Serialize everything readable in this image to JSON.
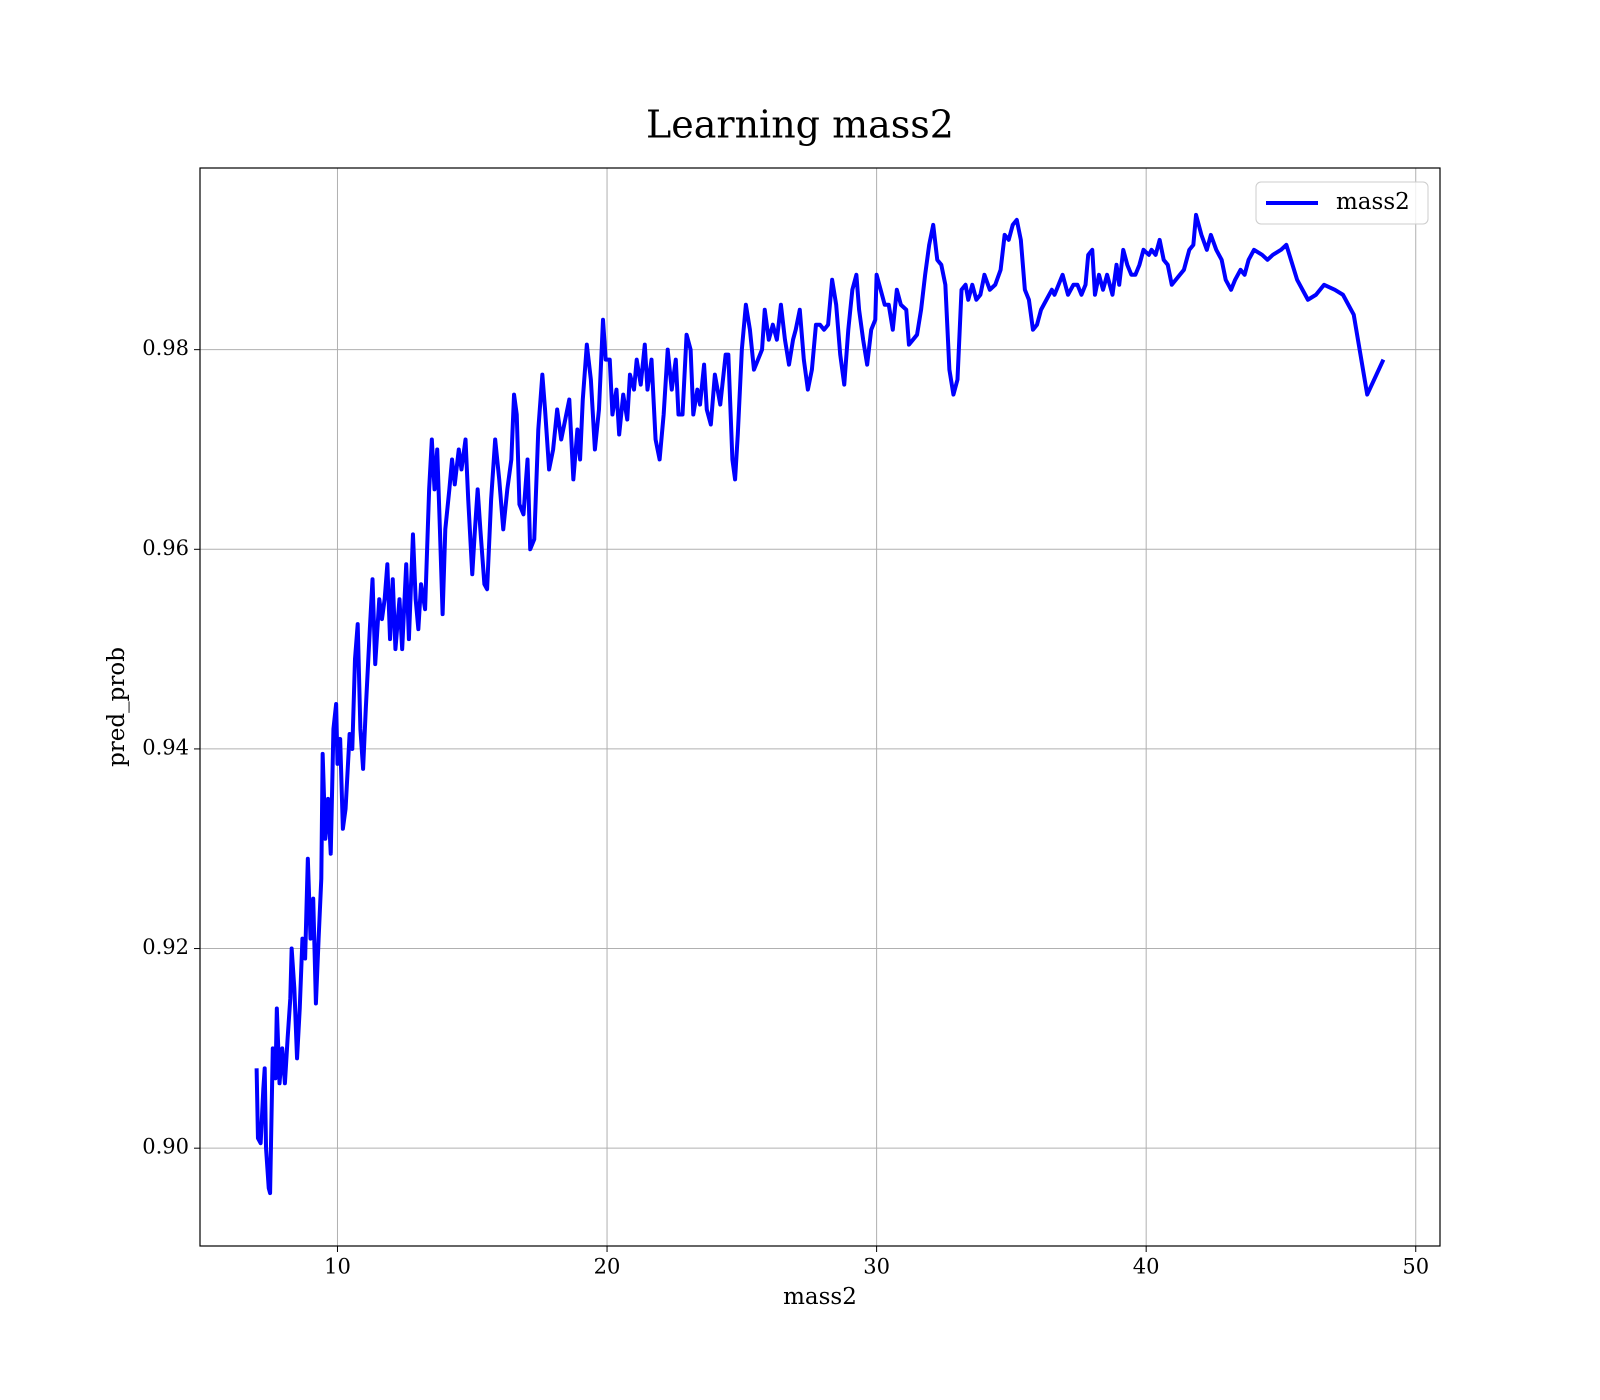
{
  "chart_data": {
    "type": "line",
    "title": "Learning mass2",
    "xlabel": "mass2",
    "ylabel": "pred_prob",
    "x": [
      7.0,
      7.05,
      7.15,
      7.25,
      7.3,
      7.35,
      7.45,
      7.5,
      7.6,
      7.7,
      7.75,
      7.85,
      7.95,
      8.05,
      8.15,
      8.25,
      8.3,
      8.4,
      8.5,
      8.6,
      8.7,
      8.8,
      8.9,
      9.0,
      9.1,
      9.2,
      9.3,
      9.4,
      9.45,
      9.55,
      9.65,
      9.75,
      9.85,
      9.95,
      10.0,
      10.1,
      10.2,
      10.3,
      10.45,
      10.55,
      10.65,
      10.75,
      10.85,
      10.95,
      11.05,
      11.2,
      11.3,
      11.4,
      11.55,
      11.65,
      11.75,
      11.85,
      11.95,
      12.05,
      12.15,
      12.3,
      12.4,
      12.55,
      12.65,
      12.8,
      12.9,
      13.0,
      13.1,
      13.25,
      13.4,
      13.5,
      13.6,
      13.7,
      13.8,
      13.9,
      14.0,
      14.15,
      14.25,
      14.35,
      14.5,
      14.6,
      14.75,
      14.85,
      15.0,
      15.1,
      15.2,
      15.3,
      15.45,
      15.55,
      15.7,
      15.85,
      16.0,
      16.15,
      16.3,
      16.45,
      16.55,
      16.65,
      16.75,
      16.9,
      17.05,
      17.15,
      17.3,
      17.45,
      17.6,
      17.7,
      17.85,
      18.0,
      18.15,
      18.3,
      18.45,
      18.6,
      18.75,
      18.9,
      19.0,
      19.1,
      19.25,
      19.4,
      19.55,
      19.7,
      19.85,
      19.95,
      20.1,
      20.2,
      20.35,
      20.45,
      20.6,
      20.75,
      20.85,
      21.0,
      21.1,
      21.25,
      21.4,
      21.5,
      21.65,
      21.8,
      21.95,
      22.1,
      22.25,
      22.4,
      22.55,
      22.65,
      22.8,
      22.95,
      23.1,
      23.2,
      23.35,
      23.45,
      23.6,
      23.7,
      23.85,
      24.0,
      24.2,
      24.4,
      24.5,
      24.65,
      24.75,
      24.85,
      25.0,
      25.15,
      25.3,
      25.45,
      25.6,
      25.75,
      25.85,
      26.0,
      26.15,
      26.3,
      26.45,
      26.6,
      26.75,
      26.9,
      27.0,
      27.15,
      27.3,
      27.45,
      27.6,
      27.75,
      27.9,
      28.05,
      28.2,
      28.35,
      28.5,
      28.65,
      28.8,
      28.95,
      29.1,
      29.25,
      29.35,
      29.5,
      29.65,
      29.8,
      29.95,
      30.0,
      30.15,
      30.3,
      30.45,
      30.6,
      30.75,
      30.9,
      31.1,
      31.2,
      31.35,
      31.5,
      31.65,
      31.8,
      31.95,
      32.1,
      32.25,
      32.4,
      32.55,
      32.7,
      32.85,
      33.0,
      33.15,
      33.3,
      33.4,
      33.55,
      33.7,
      33.85,
      34.0,
      34.2,
      34.4,
      34.6,
      34.75,
      34.9,
      35.05,
      35.2,
      35.35,
      35.5,
      35.65,
      35.8,
      35.95,
      36.1,
      36.3,
      36.5,
      36.6,
      36.75,
      36.9,
      37.1,
      37.3,
      37.45,
      37.6,
      37.75,
      37.85,
      38.0,
      38.1,
      38.25,
      38.4,
      38.55,
      38.75,
      38.9,
      39.0,
      39.15,
      39.3,
      39.45,
      39.6,
      39.75,
      39.9,
      40.1,
      40.2,
      40.35,
      40.5,
      40.65,
      40.8,
      40.95,
      41.1,
      41.25,
      41.4,
      41.6,
      41.75,
      41.85,
      42.05,
      42.25,
      42.4,
      42.6,
      42.8,
      42.95,
      43.15,
      43.3,
      43.5,
      43.65,
      43.8,
      44.0,
      44.3,
      44.5,
      44.7,
      45.0,
      45.2,
      45.6,
      46.0,
      46.3,
      46.6,
      47.0,
      47.3,
      47.7,
      48.2,
      48.8
    ],
    "series": [
      {
        "name": "mass2",
        "color": "#0000ff",
        "values": [
          0.908,
          0.901,
          0.9005,
          0.906,
          0.908,
          0.9,
          0.896,
          0.8955,
          0.91,
          0.907,
          0.914,
          0.9065,
          0.91,
          0.9065,
          0.911,
          0.915,
          0.92,
          0.916,
          0.909,
          0.914,
          0.921,
          0.919,
          0.929,
          0.921,
          0.925,
          0.9145,
          0.921,
          0.927,
          0.9395,
          0.931,
          0.935,
          0.9295,
          0.942,
          0.9445,
          0.9385,
          0.941,
          0.932,
          0.934,
          0.9415,
          0.94,
          0.949,
          0.9525,
          0.942,
          0.938,
          0.944,
          0.952,
          0.957,
          0.9485,
          0.955,
          0.953,
          0.955,
          0.9585,
          0.951,
          0.957,
          0.95,
          0.955,
          0.95,
          0.9585,
          0.951,
          0.9615,
          0.955,
          0.952,
          0.9565,
          0.954,
          0.966,
          0.971,
          0.966,
          0.97,
          0.962,
          0.9535,
          0.962,
          0.966,
          0.969,
          0.9665,
          0.97,
          0.968,
          0.971,
          0.965,
          0.9575,
          0.962,
          0.966,
          0.962,
          0.9565,
          0.956,
          0.965,
          0.971,
          0.967,
          0.962,
          0.966,
          0.969,
          0.9755,
          0.9735,
          0.9645,
          0.9635,
          0.969,
          0.96,
          0.961,
          0.972,
          0.9775,
          0.974,
          0.968,
          0.97,
          0.974,
          0.971,
          0.973,
          0.975,
          0.967,
          0.972,
          0.969,
          0.975,
          0.9805,
          0.977,
          0.97,
          0.974,
          0.983,
          0.979,
          0.979,
          0.9735,
          0.976,
          0.9715,
          0.9755,
          0.973,
          0.9775,
          0.976,
          0.979,
          0.9765,
          0.9805,
          0.976,
          0.979,
          0.971,
          0.969,
          0.9735,
          0.98,
          0.976,
          0.979,
          0.9735,
          0.9735,
          0.9815,
          0.98,
          0.9735,
          0.976,
          0.9745,
          0.9785,
          0.974,
          0.9725,
          0.9775,
          0.9745,
          0.9795,
          0.9795,
          0.969,
          0.967,
          0.9715,
          0.98,
          0.9845,
          0.982,
          0.978,
          0.979,
          0.98,
          0.984,
          0.981,
          0.9825,
          0.981,
          0.9845,
          0.981,
          0.9785,
          0.981,
          0.982,
          0.984,
          0.979,
          0.976,
          0.978,
          0.9825,
          0.9825,
          0.982,
          0.9825,
          0.987,
          0.9845,
          0.9795,
          0.9765,
          0.982,
          0.986,
          0.9875,
          0.984,
          0.981,
          0.9785,
          0.982,
          0.983,
          0.9875,
          0.986,
          0.9845,
          0.9845,
          0.982,
          0.986,
          0.9845,
          0.984,
          0.9805,
          0.981,
          0.9815,
          0.984,
          0.9875,
          0.9905,
          0.9925,
          0.989,
          0.9885,
          0.9865,
          0.978,
          0.9755,
          0.977,
          0.986,
          0.9865,
          0.985,
          0.9865,
          0.985,
          0.9855,
          0.9875,
          0.986,
          0.9865,
          0.988,
          0.9915,
          0.991,
          0.9925,
          0.993,
          0.991,
          0.986,
          0.985,
          0.982,
          0.9825,
          0.984,
          0.985,
          0.986,
          0.9855,
          0.9865,
          0.9875,
          0.9855,
          0.9865,
          0.9865,
          0.9855,
          0.9865,
          0.9895,
          0.99,
          0.9855,
          0.9875,
          0.986,
          0.9875,
          0.9855,
          0.9885,
          0.9865,
          0.99,
          0.9885,
          0.9875,
          0.9875,
          0.9885,
          0.99,
          0.9895,
          0.99,
          0.9895,
          0.991,
          0.989,
          0.9885,
          0.9865,
          0.987,
          0.9875,
          0.988,
          0.99,
          0.9905,
          0.9935,
          0.9915,
          0.99,
          0.9915,
          0.99,
          0.989,
          0.987,
          0.986,
          0.987,
          0.988,
          0.9875,
          0.989,
          0.99,
          0.9895,
          0.989,
          0.9895,
          0.99,
          0.9905,
          0.987,
          0.985,
          0.9855,
          0.9865,
          0.986,
          0.9855,
          0.9835,
          0.9755,
          0.979
        ]
      }
    ],
    "xlim": [
      4.9,
      50.9
    ],
    "ylim": [
      0.8902,
      0.9982
    ],
    "xticks": [
      10,
      20,
      30,
      40,
      50
    ],
    "yticks": [
      {
        "value": 0.9,
        "label": "0.90"
      },
      0.92,
      0.94,
      0.96,
      0.98
    ],
    "grid": true,
    "legend": "upper right"
  }
}
